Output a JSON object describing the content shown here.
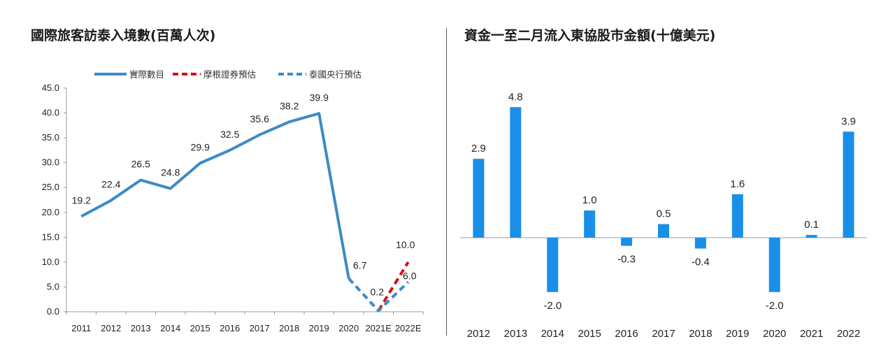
{
  "left": {
    "title": "國際旅客訪泰入境數(百萬人次)",
    "legend": [
      {
        "name": "實際數目",
        "color": "#3d8bc4",
        "style": "solid"
      },
      {
        "name": "摩根證券預估",
        "color": "#d6101a",
        "style": "dashed"
      },
      {
        "name": "泰國央行預估",
        "color": "#3d8bc4",
        "style": "dashed"
      }
    ]
  },
  "right": {
    "title": "資金一至二月流入東協股市金額(十億美元)"
  },
  "chart_data": [
    {
      "type": "line",
      "title": "國際旅客訪泰入境數(百萬人次)",
      "categories": [
        "2011",
        "2012",
        "2013",
        "2014",
        "2015",
        "2016",
        "2017",
        "2018",
        "2019",
        "2020",
        "2021E",
        "2022E"
      ],
      "ylim": [
        0,
        45
      ],
      "yticks": [
        "0.0",
        "5.0",
        "10.0",
        "15.0",
        "20.0",
        "25.0",
        "30.0",
        "35.0",
        "40.0",
        "45.0"
      ],
      "grid": false,
      "legend_position": "top",
      "series": [
        {
          "name": "實際數目",
          "values": [
            19.2,
            22.4,
            26.5,
            24.8,
            29.9,
            32.5,
            35.6,
            38.2,
            39.9,
            6.7,
            null,
            null
          ],
          "labels": [
            "19.2",
            "22.4",
            "26.5",
            "24.8",
            "29.9",
            "32.5",
            "35.6",
            "38.2",
            "39.9",
            "6.7",
            "",
            ""
          ]
        },
        {
          "name": "摩根證券預估",
          "values": [
            null,
            null,
            null,
            null,
            null,
            null,
            null,
            null,
            null,
            null,
            0.2,
            10.0
          ],
          "labels": [
            "",
            "",
            "",
            "",
            "",
            "",
            "",
            "",
            "",
            "",
            "",
            "10.0"
          ]
        },
        {
          "name": "泰國央行預估",
          "values": [
            null,
            null,
            null,
            null,
            null,
            null,
            null,
            null,
            null,
            6.7,
            0.2,
            6.0
          ],
          "labels": [
            "",
            "",
            "",
            "",
            "",
            "",
            "",
            "",
            "",
            "",
            "0.2",
            "6.0"
          ]
        }
      ]
    },
    {
      "type": "bar",
      "title": "資金一至二月流入東協股市金額(十億美元)",
      "categories": [
        "2012",
        "2013",
        "2014",
        "2015",
        "2016",
        "2017",
        "2018",
        "2019",
        "2020",
        "2021",
        "2022"
      ],
      "values": [
        2.9,
        4.8,
        -2.0,
        1.0,
        -0.3,
        0.5,
        -0.4,
        1.6,
        -2.0,
        0.1,
        3.9
      ],
      "labels": [
        "2.9",
        "4.8",
        "-2.0",
        "1.0",
        "-0.3",
        "0.5",
        "-0.4",
        "1.6",
        "-2.0",
        "0.1",
        "3.9"
      ],
      "ylim": [
        -2.0,
        4.8
      ],
      "color": "#1a8fe8",
      "grid": false
    }
  ]
}
